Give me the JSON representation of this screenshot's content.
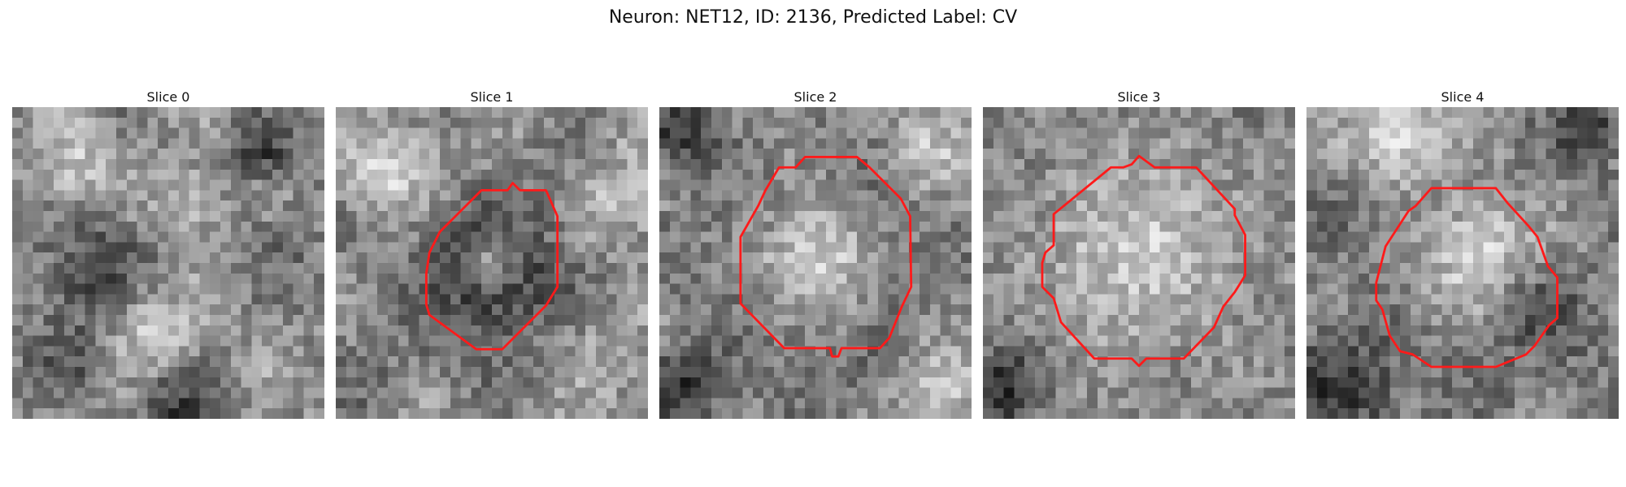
{
  "figure": {
    "title": "Neuron: NET12, ID: 2136, Predicted Label: CV",
    "contour_color": "#ff1a1a"
  },
  "panels": [
    {
      "title": "Slice 0",
      "blobs": [
        {
          "cx": 8,
          "cy": 16,
          "r": 3.6,
          "v": 0.22
        },
        {
          "cx": 24,
          "cy": 4,
          "r": 2.2,
          "v": 0.18
        },
        {
          "cx": 26,
          "cy": 14,
          "r": 3.0,
          "v": 0.4
        },
        {
          "cx": 14,
          "cy": 22,
          "r": 2.8,
          "v": 0.85
        },
        {
          "cx": 5,
          "cy": 24,
          "r": 2.6,
          "v": 0.3
        },
        {
          "cx": 16,
          "cy": 29,
          "r": 2.6,
          "v": 0.2
        },
        {
          "cx": 6,
          "cy": 5,
          "r": 2.6,
          "v": 0.8
        },
        {
          "cx": 17,
          "cy": 9,
          "r": 2.4,
          "v": 0.72
        }
      ],
      "contour": []
    },
    {
      "title": "Slice 1",
      "blobs": [
        {
          "cx": 15,
          "cy": 16,
          "r": 6.0,
          "v": 0.2
        },
        {
          "cx": 15,
          "cy": 15,
          "r": 1.6,
          "v": 0.6
        },
        {
          "cx": 5.5,
          "cy": 6,
          "r": 3.0,
          "v": 0.88
        },
        {
          "cx": 27,
          "cy": 9,
          "r": 3.2,
          "v": 0.75
        },
        {
          "cx": 25,
          "cy": 25,
          "r": 3.0,
          "v": 0.68
        },
        {
          "cx": 2,
          "cy": 26,
          "r": 2.5,
          "v": 0.4
        }
      ],
      "contour": [
        [
          17,
          7.3
        ],
        [
          16.5,
          8
        ],
        [
          14,
          8
        ],
        [
          10,
          12
        ],
        [
          9.5,
          13
        ],
        [
          9,
          14
        ],
        [
          8.7,
          16
        ],
        [
          8.7,
          19
        ],
        [
          9,
          20
        ],
        [
          13.5,
          23.3
        ],
        [
          16,
          23.3
        ],
        [
          20.2,
          19.1
        ],
        [
          21.3,
          17.3
        ],
        [
          21.3,
          10.5
        ],
        [
          20.2,
          8
        ],
        [
          17.7,
          8
        ]
      ]
    },
    {
      "title": "Slice 2",
      "blobs": [
        {
          "cx": 15,
          "cy": 16,
          "r": 7.4,
          "v": 0.22
        },
        {
          "cx": 15,
          "cy": 15,
          "r": 4.9,
          "v": 0.85
        },
        {
          "cx": 2,
          "cy": 2,
          "r": 2.4,
          "v": 0.15
        },
        {
          "cx": 2,
          "cy": 27,
          "r": 2.6,
          "v": 0.12
        },
        {
          "cx": 27,
          "cy": 27,
          "r": 2.6,
          "v": 0.8
        },
        {
          "cx": 26,
          "cy": 4,
          "r": 2.4,
          "v": 0.8
        }
      ],
      "contour": [
        [
          14,
          4.8
        ],
        [
          19,
          4.8
        ],
        [
          20.2,
          5.8
        ],
        [
          23.2,
          8.8
        ],
        [
          24.1,
          10.5
        ],
        [
          24.2,
          17.3
        ],
        [
          23.3,
          19.2
        ],
        [
          22.1,
          22.2
        ],
        [
          21.2,
          23.2
        ],
        [
          17.5,
          23.2
        ],
        [
          17.2,
          24
        ],
        [
          16.6,
          24
        ],
        [
          16.4,
          23.2
        ],
        [
          12,
          23.2
        ],
        [
          7.8,
          18.9
        ],
        [
          7.8,
          12.5
        ],
        [
          9.5,
          9.5
        ],
        [
          10.2,
          8
        ],
        [
          11.5,
          5.8
        ],
        [
          13.1,
          5.8
        ]
      ]
    },
    {
      "title": "Slice 3",
      "blobs": [
        {
          "cx": 15,
          "cy": 14,
          "r": 9.8,
          "v": 0.24
        },
        {
          "cx": 15,
          "cy": 14,
          "r": 8.6,
          "v": 0.82
        },
        {
          "cx": 2,
          "cy": 27,
          "r": 2.8,
          "v": 0.15
        },
        {
          "cx": 3,
          "cy": 3,
          "r": 2.4,
          "v": 0.5
        },
        {
          "cx": 28,
          "cy": 5,
          "r": 2.4,
          "v": 0.55
        }
      ],
      "contour": [
        [
          15,
          4.7
        ],
        [
          14.3,
          5.5
        ],
        [
          13.5,
          5.8
        ],
        [
          12.3,
          5.8
        ],
        [
          6.8,
          10.3
        ],
        [
          6.8,
          13.3
        ],
        [
          6,
          14
        ],
        [
          5.7,
          15
        ],
        [
          5.7,
          17.3
        ],
        [
          6.8,
          18.4
        ],
        [
          7.5,
          20.7
        ],
        [
          10.7,
          24.2
        ],
        [
          14.3,
          24.2
        ],
        [
          15,
          24.9
        ],
        [
          15.7,
          24.2
        ],
        [
          19.3,
          24.2
        ],
        [
          22.2,
          21.2
        ],
        [
          23.1,
          19.2
        ],
        [
          24.2,
          17.8
        ],
        [
          25.2,
          16.2
        ],
        [
          25.2,
          12.3
        ],
        [
          24.2,
          10.4
        ],
        [
          24.2,
          9.8
        ],
        [
          20.5,
          5.8
        ],
        [
          16.5,
          5.8
        ]
      ]
    },
    {
      "title": "Slice 4",
      "blobs": [
        {
          "cx": 16,
          "cy": 17,
          "r": 8.0,
          "v": 0.28
        },
        {
          "cx": 17,
          "cy": 15,
          "r": 5.4,
          "v": 0.85
        },
        {
          "cx": 23,
          "cy": 20,
          "r": 3.0,
          "v": 0.25
        },
        {
          "cx": 3,
          "cy": 27,
          "r": 3.6,
          "v": 0.15
        },
        {
          "cx": 27,
          "cy": 2,
          "r": 2.6,
          "v": 0.2
        },
        {
          "cx": 1,
          "cy": 10,
          "r": 2.6,
          "v": 0.35
        },
        {
          "cx": 9,
          "cy": 3,
          "r": 3.2,
          "v": 0.88
        }
      ],
      "contour": [
        [
          12,
          7.8
        ],
        [
          18.2,
          7.8
        ],
        [
          19.3,
          9.2
        ],
        [
          21.3,
          11.4
        ],
        [
          22.2,
          12.5
        ],
        [
          23.2,
          15.3
        ],
        [
          24.1,
          16.4
        ],
        [
          24.1,
          20.3
        ],
        [
          23.3,
          21
        ],
        [
          21.9,
          23
        ],
        [
          21.1,
          23.8
        ],
        [
          18.2,
          25
        ],
        [
          12,
          25
        ],
        [
          10.2,
          23.8
        ],
        [
          9,
          23.5
        ],
        [
          8,
          22
        ],
        [
          7.8,
          21.3
        ],
        [
          7.3,
          19.5
        ],
        [
          6.7,
          18.6
        ],
        [
          6.7,
          16.9
        ],
        [
          7.6,
          13.4
        ],
        [
          9.8,
          10
        ],
        [
          10.5,
          9.5
        ]
      ]
    }
  ]
}
